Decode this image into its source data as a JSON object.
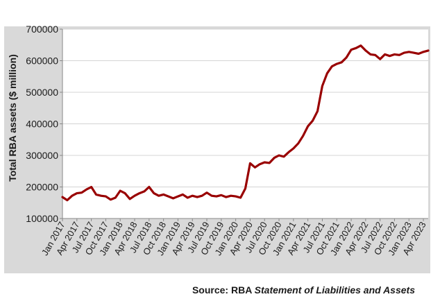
{
  "chart_data": {
    "type": "line",
    "title": "",
    "xlabel": "",
    "ylabel": "Total RBA assets ($ million)",
    "ylim": [
      100000,
      700000
    ],
    "yticks": [
      100000,
      200000,
      300000,
      400000,
      500000,
      600000,
      700000
    ],
    "ytick_labels": [
      "100000",
      "200000",
      "300000",
      "400000",
      "500000",
      "600000",
      "700000"
    ],
    "xlim": [
      "2017-01",
      "2023-05"
    ],
    "xtick_labels": [
      "Jan 2017",
      "Apr 2017",
      "Jul 2017",
      "Oct 2017",
      "Jan 2018",
      "Apr 2018",
      "Jul 2018",
      "Oct 2018",
      "Jan 2019",
      "Apr 2019",
      "Jul 2019",
      "Oct 2019",
      "Jan 2020",
      "Apr 2020",
      "Jul 2020",
      "Oct 2020",
      "Jan 2021",
      "Apr 2021",
      "Jul 2021",
      "Oct 2021",
      "Jan 2022",
      "Apr 2022",
      "Jul 2022",
      "Oct 2022",
      "Jan 2023",
      "Apr 2023"
    ],
    "grid": true,
    "line_color": "#990000",
    "series": [
      {
        "x": [
          "2017-01",
          "2017-02",
          "2017-03",
          "2017-04",
          "2017-05",
          "2017-06",
          "2017-07",
          "2017-08",
          "2017-09",
          "2017-10",
          "2017-11",
          "2017-12",
          "2018-01",
          "2018-02",
          "2018-03",
          "2018-04",
          "2018-05",
          "2018-06",
          "2018-07",
          "2018-08",
          "2018-09",
          "2018-10",
          "2018-11",
          "2018-12",
          "2019-01",
          "2019-02",
          "2019-03",
          "2019-04",
          "2019-05",
          "2019-06",
          "2019-07",
          "2019-08",
          "2019-09",
          "2019-10",
          "2019-11",
          "2019-12",
          "2020-01",
          "2020-02",
          "2020-03",
          "2020-04",
          "2020-05",
          "2020-06",
          "2020-07",
          "2020-08",
          "2020-09",
          "2020-10",
          "2020-11",
          "2020-12",
          "2021-01",
          "2021-02",
          "2021-03",
          "2021-04",
          "2021-05",
          "2021-06",
          "2021-07",
          "2021-08",
          "2021-09",
          "2021-10",
          "2021-11",
          "2021-12",
          "2022-01",
          "2022-02",
          "2022-03",
          "2022-04",
          "2022-05",
          "2022-06",
          "2022-07",
          "2022-08",
          "2022-09",
          "2022-10",
          "2022-11",
          "2022-12",
          "2023-01",
          "2023-02",
          "2023-03",
          "2023-04",
          "2023-05"
        ],
        "values": [
          168000,
          158000,
          172000,
          180000,
          182000,
          192000,
          200000,
          176000,
          172000,
          170000,
          160000,
          166000,
          188000,
          180000,
          162000,
          172000,
          180000,
          186000,
          200000,
          180000,
          172000,
          176000,
          170000,
          164000,
          170000,
          176000,
          166000,
          172000,
          168000,
          172000,
          182000,
          172000,
          170000,
          174000,
          168000,
          172000,
          170000,
          166000,
          195000,
          275000,
          262000,
          272000,
          278000,
          276000,
          292000,
          300000,
          296000,
          310000,
          322000,
          338000,
          362000,
          392000,
          410000,
          440000,
          520000,
          560000,
          582000,
          590000,
          595000,
          610000,
          635000,
          640000,
          648000,
          632000,
          620000,
          618000,
          605000,
          620000,
          615000,
          620000,
          618000,
          625000,
          628000,
          625000,
          622000,
          628000,
          632000
        ]
      }
    ]
  },
  "source": {
    "prefix": "Source: RBA ",
    "publication": "Statement of Liabilities and Assets"
  }
}
